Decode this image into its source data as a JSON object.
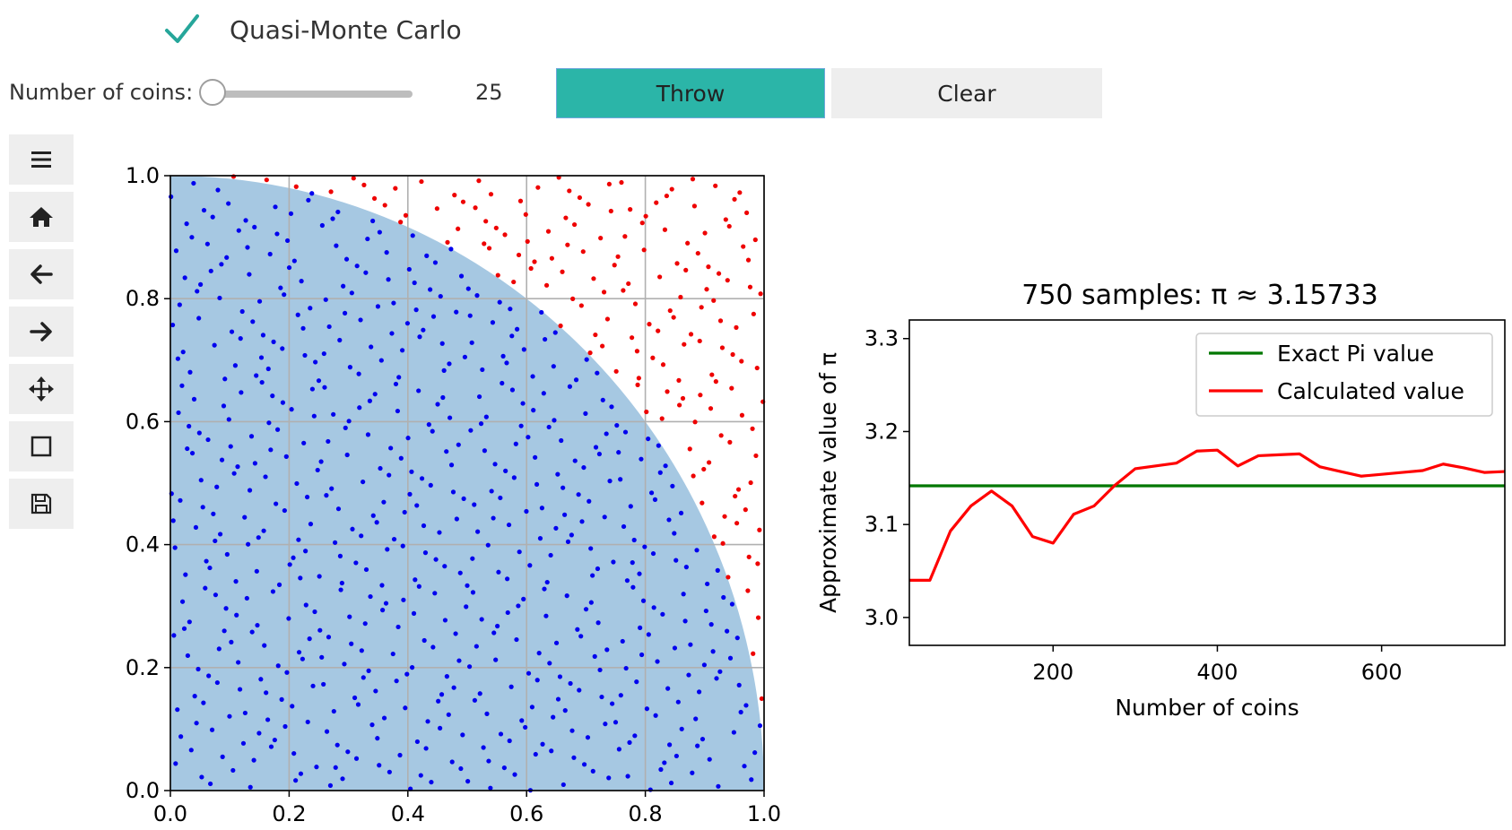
{
  "checkbox": {
    "label": "Quasi-Monte Carlo",
    "icon": "checkmark-icon",
    "checked": true,
    "color": "#26a69a"
  },
  "slider": {
    "label": "Number of coins:",
    "value": "25"
  },
  "buttons": {
    "throw_label": "Throw",
    "clear_label": "Clear",
    "throw_color": "#2bb5a8"
  },
  "toolbar": {
    "items": [
      "menu-icon",
      "home-icon",
      "back-arrow-icon",
      "forward-arrow-icon",
      "pan-icon",
      "zoom-rect-icon",
      "save-icon"
    ]
  },
  "chart_data": [
    {
      "type": "scatter",
      "title": "",
      "xlabel": "",
      "ylabel": "",
      "xlim": [
        0.0,
        1.0
      ],
      "ylim": [
        0.0,
        1.0
      ],
      "xticks": [
        "0.0",
        "0.2",
        "0.4",
        "0.6",
        "0.8",
        "1.0"
      ],
      "yticks": [
        "0.0",
        "0.2",
        "0.4",
        "0.6",
        "0.8",
        "1.0"
      ],
      "grid": true,
      "region": {
        "shape": "quarter-circle",
        "radius": 1.0,
        "color": "#a6c8e2"
      },
      "inside_color": "#0000ee",
      "outside_color": "#ee0000",
      "sample_count": 750,
      "point_generator": "halton bases 2 and 3, indices 1 to 750"
    },
    {
      "type": "line",
      "title": "750 samples: π ≈ 3.15733",
      "xlabel": "Number of coins",
      "ylabel": "Approximate value of π",
      "xlim": [
        25,
        750
      ],
      "ylim": [
        2.97,
        3.32
      ],
      "xticks": [
        "200",
        "400",
        "600"
      ],
      "yticks": [
        "3.0",
        "3.1",
        "3.2",
        "3.3"
      ],
      "legend": "top-right",
      "series": [
        {
          "name": "Exact Pi value",
          "color": "#007700",
          "x": [
            25,
            750
          ],
          "y": [
            3.14159,
            3.14159
          ]
        },
        {
          "name": "Calculated value",
          "color": "#ff0000",
          "x": [
            25,
            50,
            75,
            100,
            125,
            150,
            175,
            200,
            225,
            250,
            275,
            300,
            325,
            350,
            375,
            400,
            425,
            450,
            475,
            500,
            525,
            550,
            575,
            600,
            625,
            650,
            675,
            700,
            725,
            750
          ],
          "y": [
            3.04,
            3.04,
            3.093,
            3.12,
            3.136,
            3.12,
            3.087,
            3.08,
            3.111,
            3.12,
            3.142,
            3.16,
            3.163,
            3.166,
            3.179,
            3.18,
            3.163,
            3.174,
            3.175,
            3.176,
            3.162,
            3.157,
            3.152,
            3.154,
            3.156,
            3.158,
            3.165,
            3.161,
            3.156,
            3.157
          ]
        }
      ]
    }
  ]
}
